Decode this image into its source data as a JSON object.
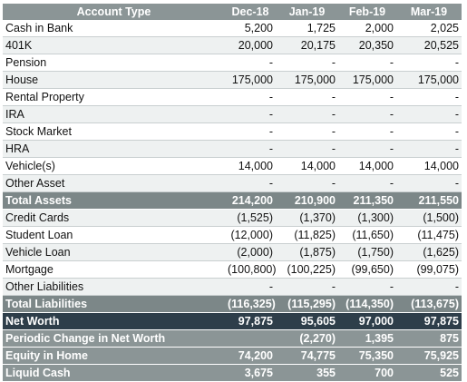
{
  "columns": [
    "Account Type",
    "Dec-18",
    "Jan-19",
    "Feb-19",
    "Mar-19"
  ],
  "rows": [
    {
      "style": "plain",
      "label": "Cash in Bank",
      "values": [
        "5,200",
        "1,725",
        "2,000",
        "2,025"
      ]
    },
    {
      "style": "plain",
      "label": "401K",
      "values": [
        "20,000",
        "20,175",
        "20,350",
        "20,525"
      ]
    },
    {
      "style": "plain",
      "label": "Pension",
      "values": [
        "-",
        "-",
        "-",
        "-"
      ]
    },
    {
      "style": "plain",
      "label": "House",
      "values": [
        "175,000",
        "175,000",
        "175,000",
        "175,000"
      ]
    },
    {
      "style": "plain",
      "label": "Rental Property",
      "values": [
        "-",
        "-",
        "-",
        "-"
      ]
    },
    {
      "style": "plain",
      "label": "IRA",
      "values": [
        "-",
        "-",
        "-",
        "-"
      ]
    },
    {
      "style": "plain",
      "label": "Stock Market",
      "values": [
        "-",
        "-",
        "-",
        "-"
      ]
    },
    {
      "style": "plain",
      "label": "HRA",
      "values": [
        "-",
        "-",
        "-",
        "-"
      ]
    },
    {
      "style": "plain",
      "label": "Vehicle(s)",
      "values": [
        "14,000",
        "14,000",
        "14,000",
        "14,000"
      ]
    },
    {
      "style": "plain",
      "label": "Other Asset",
      "values": [
        "-",
        "-",
        "-",
        "-"
      ]
    },
    {
      "style": "subtotal",
      "label": "Total Assets",
      "values": [
        "214,200",
        "210,900",
        "211,350",
        "211,550"
      ]
    },
    {
      "style": "plain",
      "label": "Credit Cards",
      "values": [
        "(1,525)",
        "(1,370)",
        "(1,300)",
        "(1,500)"
      ]
    },
    {
      "style": "plain",
      "label": "Student Loan",
      "values": [
        "(12,000)",
        "(11,825)",
        "(11,650)",
        "(11,475)"
      ]
    },
    {
      "style": "plain",
      "label": "Vehicle Loan",
      "values": [
        "(2,000)",
        "(1,875)",
        "(1,750)",
        "(1,625)"
      ]
    },
    {
      "style": "plain",
      "label": "Mortgage",
      "values": [
        "(100,800)",
        "(100,225)",
        "(99,650)",
        "(99,075)"
      ]
    },
    {
      "style": "plain",
      "label": "Other Liabilities",
      "values": [
        "-",
        "-",
        "-",
        "-"
      ]
    },
    {
      "style": "subtotal",
      "label": "Total Liabilities",
      "values": [
        "(116,325)",
        "(115,295)",
        "(114,350)",
        "(113,675)"
      ]
    },
    {
      "style": "net",
      "label": "Net Worth",
      "values": [
        "97,875",
        "95,605",
        "97,000",
        "97,875"
      ]
    },
    {
      "style": "grey",
      "label": "Periodic Change in Net Worth",
      "values": [
        "",
        "(2,270)",
        "1,395",
        "875"
      ]
    },
    {
      "style": "grey",
      "label": "Equity in Home",
      "values": [
        "74,200",
        "74,775",
        "75,350",
        "75,925"
      ]
    },
    {
      "style": "grey",
      "label": "Liquid Cash",
      "values": [
        "3,675",
        "355",
        "700",
        "525"
      ]
    }
  ]
}
